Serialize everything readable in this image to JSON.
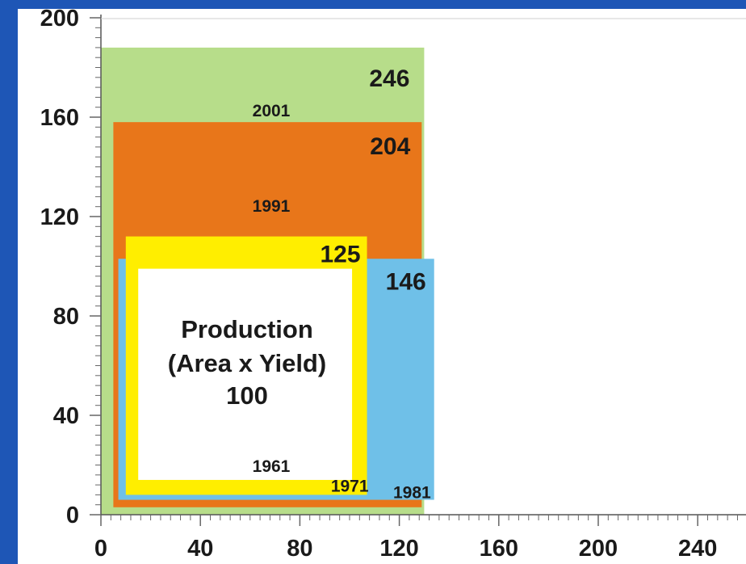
{
  "chart_data": {
    "type": "area-rectangles",
    "title": "",
    "xlabel": "",
    "ylabel": "",
    "xlim": [
      0,
      260
    ],
    "ylim": [
      0,
      200
    ],
    "x_ticks": [
      0,
      40,
      80,
      120,
      160,
      200,
      240
    ],
    "y_ticks": [
      0,
      40,
      80,
      120,
      160,
      200
    ],
    "x_tick_labels": [
      "0",
      "40",
      "80",
      "120",
      "160",
      "200",
      "240"
    ],
    "y_tick_labels": [
      "0",
      "40",
      "80",
      "120",
      "160",
      "200"
    ],
    "grid": false,
    "rectangles": [
      {
        "year": "2001",
        "value": "246",
        "x": [
          0,
          130
        ],
        "y": [
          0,
          188
        ],
        "color": "#b7dd8a"
      },
      {
        "year": "1991",
        "value": "204",
        "x": [
          5,
          129
        ],
        "y": [
          3,
          158
        ],
        "color": "#e8761a"
      },
      {
        "year": "1981",
        "value": "146",
        "x": [
          7,
          134
        ],
        "y": [
          6,
          103
        ],
        "color": "#6fc0e8"
      },
      {
        "year": "1971",
        "value": "125",
        "x": [
          10,
          107
        ],
        "y": [
          8,
          112
        ],
        "color": "#ffee00"
      },
      {
        "year": "1961",
        "value": "100",
        "x": [
          15,
          101
        ],
        "y": [
          14,
          99
        ],
        "color": "#ffffff"
      }
    ],
    "center_label": [
      "Production",
      "(Area x Yield)",
      "100"
    ]
  }
}
